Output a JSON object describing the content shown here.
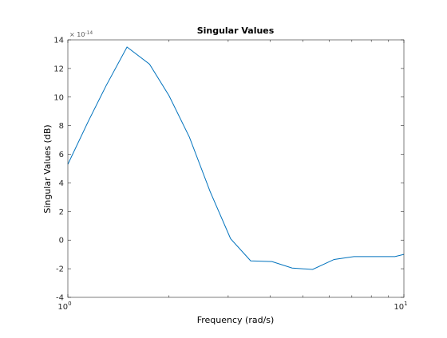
{
  "chart_data": {
    "type": "line",
    "title": "Singular Values",
    "xlabel": "Frequency (rad/s)",
    "ylabel": "Singular Values (dB)",
    "xscale": "log",
    "xlim": [
      1,
      10
    ],
    "ylim": [
      -4e-14,
      1.4e-13
    ],
    "y_exponent_label": "× 10",
    "y_exponent_power": "-14",
    "y_ticks": [
      -4,
      -2,
      0,
      2,
      4,
      6,
      8,
      10,
      12,
      14
    ],
    "y_tick_labels": [
      "-4",
      "-2",
      "0",
      "2",
      "4",
      "6",
      "8",
      "10",
      "12",
      "14"
    ],
    "x_ticks": [
      1,
      10
    ],
    "x_tick_labels": [
      {
        "base": "10",
        "exp": "0"
      },
      {
        "base": "10",
        "exp": "1"
      }
    ],
    "grid": false,
    "box": true,
    "series": [
      {
        "color": "#0072bd",
        "x": [
          1.0,
          1.15,
          1.3,
          1.5,
          1.75,
          2.0,
          2.3,
          2.65,
          3.05,
          3.5,
          4.05,
          4.65,
          5.35,
          6.2,
          7.1,
          8.2,
          9.4,
          10.0
        ],
        "y": [
          5.3e-14,
          8.3e-14,
          1.08e-13,
          1.35e-13,
          1.23e-13,
          1.01e-13,
          7.2e-14,
          3.4e-14,
          1e-15,
          -1.45e-14,
          -1.5e-14,
          -1.95e-14,
          -2.05e-14,
          -1.35e-14,
          -1.15e-14,
          -1.15e-14,
          -1.15e-14,
          -1e-14
        ]
      }
    ]
  }
}
